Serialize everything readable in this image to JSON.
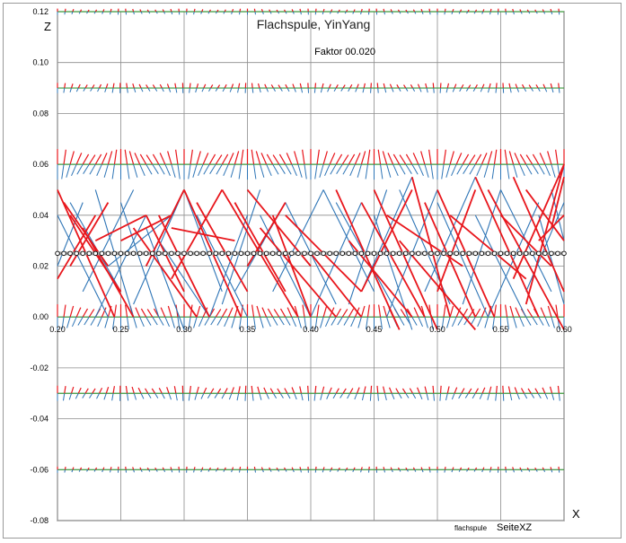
{
  "chart_data": {
    "type": "line",
    "title": "Flachspule, YinYang",
    "subtitle": "Faktor 00.020",
    "xlabel": "X",
    "ylabel": "Z",
    "footer_small": "flachspule",
    "footer_large": "SeiteXZ",
    "xlim": [
      0.2,
      0.6
    ],
    "ylim": [
      -0.08,
      0.12
    ],
    "x_ticks": [
      "0.20",
      "0.25",
      "0.30",
      "0.35",
      "0.40",
      "0.45",
      "0.50",
      "0.55",
      "0.60"
    ],
    "y_ticks": [
      "0.12",
      "0.10",
      "0.08",
      "0.06",
      "0.04",
      "0.02",
      "0.00",
      "-0.02",
      "-0.04",
      "-0.06",
      "-0.08"
    ],
    "grid": true,
    "colors": {
      "red": "#e8161c",
      "blue": "#2e75b6",
      "green": "#3c9a3c",
      "grey": "#a6a6a6",
      "black": "#000000",
      "grid": "#8c8c8c"
    },
    "planes_z": [
      0.12,
      0.09,
      0.06,
      0.025,
      0.0,
      -0.03,
      -0.06
    ],
    "series": [
      {
        "name": "",
        "color": "grey",
        "x": [
          0.2,
          0.6
        ],
        "y": [
          0.025,
          0.025
        ]
      },
      {
        "name": "",
        "color": "black",
        "marker": "circle",
        "x": [
          0.2,
          0.205,
          0.21,
          0.215,
          0.22,
          0.225,
          0.23,
          0.235,
          0.24,
          0.245,
          0.25,
          0.255,
          0.26,
          0.265,
          0.27,
          0.275,
          0.28,
          0.285,
          0.29,
          0.295,
          0.3,
          0.305,
          0.31,
          0.315,
          0.32,
          0.325,
          0.33,
          0.335,
          0.34,
          0.345,
          0.35,
          0.355,
          0.36,
          0.365,
          0.37,
          0.375,
          0.38,
          0.385,
          0.39,
          0.395,
          0.4,
          0.405,
          0.41,
          0.415,
          0.42,
          0.425,
          0.43,
          0.435,
          0.44,
          0.445,
          0.45,
          0.455,
          0.46,
          0.465,
          0.47,
          0.475,
          0.48,
          0.485,
          0.49,
          0.495,
          0.5,
          0.505,
          0.51,
          0.515,
          0.52,
          0.525,
          0.53,
          0.535,
          0.54,
          0.545,
          0.55,
          0.555,
          0.56,
          0.565,
          0.57,
          0.575,
          0.58,
          0.585,
          0.59,
          0.595,
          0.6
        ],
        "y": [
          0.025,
          0.025,
          0.025,
          0.025,
          0.025,
          0.025,
          0.025,
          0.025,
          0.025,
          0.025,
          0.025,
          0.025,
          0.025,
          0.025,
          0.025,
          0.025,
          0.025,
          0.025,
          0.025,
          0.025,
          0.025,
          0.025,
          0.025,
          0.025,
          0.025,
          0.025,
          0.025,
          0.025,
          0.025,
          0.025,
          0.025,
          0.025,
          0.025,
          0.025,
          0.025,
          0.025,
          0.025,
          0.025,
          0.025,
          0.025,
          0.025,
          0.025,
          0.025,
          0.025,
          0.025,
          0.025,
          0.025,
          0.025,
          0.025,
          0.025,
          0.025,
          0.025,
          0.025,
          0.025,
          0.025,
          0.025,
          0.025,
          0.025,
          0.025,
          0.025,
          0.025,
          0.025,
          0.025,
          0.025,
          0.025,
          0.025,
          0.025,
          0.025,
          0.025,
          0.025,
          0.025,
          0.025,
          0.025,
          0.025,
          0.025,
          0.025,
          0.025,
          0.025,
          0.025,
          0.025,
          0.025
        ]
      },
      {
        "name": "",
        "color": "red",
        "segments": [
          [
            [
              0.2,
              0.05
            ],
            [
              0.245,
              0.0
            ]
          ],
          [
            [
              0.205,
              0.045
            ],
            [
              0.24,
              0.02
            ]
          ],
          [
            [
              0.21,
              0.04
            ],
            [
              0.25,
              0.01
            ]
          ],
          [
            [
              0.22,
              0.035
            ],
            [
              0.26,
              0.0
            ]
          ],
          [
            [
              0.23,
              0.03
            ],
            [
              0.27,
              0.04
            ]
          ],
          [
            [
              0.25,
              0.03
            ],
            [
              0.29,
              0.04
            ]
          ],
          [
            [
              0.26,
              0.035
            ],
            [
              0.31,
              0.0
            ]
          ],
          [
            [
              0.27,
              0.04
            ],
            [
              0.3,
              0.01
            ]
          ],
          [
            [
              0.28,
              0.04
            ],
            [
              0.32,
              0.0
            ]
          ],
          [
            [
              0.29,
              0.035
            ],
            [
              0.34,
              0.03
            ]
          ],
          [
            [
              0.3,
              0.05
            ],
            [
              0.345,
              0.0
            ]
          ],
          [
            [
              0.31,
              0.045
            ],
            [
              0.35,
              0.01
            ]
          ],
          [
            [
              0.33,
              0.05
            ],
            [
              0.39,
              0.0
            ]
          ],
          [
            [
              0.34,
              0.045
            ],
            [
              0.38,
              0.01
            ]
          ],
          [
            [
              0.35,
              0.05
            ],
            [
              0.4,
              0.02
            ]
          ],
          [
            [
              0.36,
              0.035
            ],
            [
              0.42,
              0.0
            ]
          ],
          [
            [
              0.37,
              0.04
            ],
            [
              0.4,
              0.0
            ]
          ],
          [
            [
              0.38,
              0.04
            ],
            [
              0.44,
              0.01
            ]
          ],
          [
            [
              0.4,
              0.025
            ],
            [
              0.44,
              0.0
            ]
          ],
          [
            [
              0.42,
              0.05
            ],
            [
              0.47,
              -0.005
            ]
          ],
          [
            [
              0.43,
              0.03
            ],
            [
              0.48,
              0.0
            ]
          ],
          [
            [
              0.44,
              0.045
            ],
            [
              0.49,
              0.0
            ]
          ],
          [
            [
              0.45,
              0.05
            ],
            [
              0.5,
              -0.005
            ]
          ],
          [
            [
              0.46,
              0.04
            ],
            [
              0.52,
              0.02
            ]
          ],
          [
            [
              0.47,
              0.03
            ],
            [
              0.53,
              -0.005
            ]
          ],
          [
            [
              0.48,
              0.055
            ],
            [
              0.51,
              0.0
            ]
          ],
          [
            [
              0.49,
              0.045
            ],
            [
              0.53,
              0.0
            ]
          ],
          [
            [
              0.5,
              0.05
            ],
            [
              0.545,
              0.0
            ]
          ],
          [
            [
              0.51,
              0.04
            ],
            [
              0.57,
              0.015
            ]
          ],
          [
            [
              0.53,
              0.055
            ],
            [
              0.58,
              0.0
            ]
          ],
          [
            [
              0.54,
              0.05
            ],
            [
              0.6,
              -0.005
            ]
          ],
          [
            [
              0.55,
              0.04
            ],
            [
              0.59,
              0.02
            ]
          ],
          [
            [
              0.56,
              0.055
            ],
            [
              0.6,
              0.01
            ]
          ],
          [
            [
              0.57,
              0.05
            ],
            [
              0.6,
              0.03
            ]
          ],
          [
            [
              0.58,
              0.03
            ],
            [
              0.6,
              0.04
            ]
          ],
          [
            [
              0.59,
              0.035
            ],
            [
              0.6,
              0.055
            ]
          ],
          [
            [
              0.2,
              0.015
            ],
            [
              0.23,
              0.04
            ]
          ],
          [
            [
              0.21,
              0.02
            ],
            [
              0.24,
              0.045
            ]
          ],
          [
            [
              0.27,
              0.02
            ],
            [
              0.3,
              0.05
            ]
          ],
          [
            [
              0.29,
              0.015
            ],
            [
              0.33,
              0.05
            ]
          ],
          [
            [
              0.35,
              0.02
            ],
            [
              0.38,
              0.045
            ]
          ],
          [
            [
              0.44,
              0.01
            ],
            [
              0.48,
              0.05
            ]
          ],
          [
            [
              0.5,
              0.01
            ],
            [
              0.53,
              0.05
            ]
          ],
          [
            [
              0.56,
              0.015
            ],
            [
              0.6,
              0.06
            ]
          ],
          [
            [
              0.57,
              0.005
            ],
            [
              0.6,
              0.06
            ]
          ]
        ]
      },
      {
        "name": "",
        "color": "blue",
        "segments": [
          [
            [
              0.2,
              0.04
            ],
            [
              0.24,
              0.0
            ]
          ],
          [
            [
              0.21,
              0.045
            ],
            [
              0.25,
              0.01
            ]
          ],
          [
            [
              0.23,
              0.05
            ],
            [
              0.26,
              0.0
            ]
          ],
          [
            [
              0.22,
              0.01
            ],
            [
              0.26,
              0.05
            ]
          ],
          [
            [
              0.23,
              0.0
            ],
            [
              0.27,
              0.04
            ]
          ],
          [
            [
              0.24,
              0.02
            ],
            [
              0.29,
              0.04
            ]
          ],
          [
            [
              0.25,
              0.045
            ],
            [
              0.28,
              0.0
            ]
          ],
          [
            [
              0.26,
              0.005
            ],
            [
              0.3,
              0.05
            ]
          ],
          [
            [
              0.27,
              0.035
            ],
            [
              0.3,
              -0.005
            ]
          ],
          [
            [
              0.3,
              0.05
            ],
            [
              0.33,
              0.01
            ]
          ],
          [
            [
              0.31,
              0.04
            ],
            [
              0.35,
              0.0
            ]
          ],
          [
            [
              0.32,
              0.0
            ],
            [
              0.35,
              0.04
            ]
          ],
          [
            [
              0.33,
              0.005
            ],
            [
              0.36,
              0.05
            ]
          ],
          [
            [
              0.34,
              0.01
            ],
            [
              0.38,
              0.045
            ]
          ],
          [
            [
              0.36,
              0.04
            ],
            [
              0.4,
              0.0
            ]
          ],
          [
            [
              0.37,
              0.01
            ],
            [
              0.41,
              0.05
            ]
          ],
          [
            [
              0.38,
              0.045
            ],
            [
              0.42,
              0.005
            ]
          ],
          [
            [
              0.4,
              0.0
            ],
            [
              0.44,
              0.045
            ]
          ],
          [
            [
              0.41,
              0.05
            ],
            [
              0.45,
              0.01
            ]
          ],
          [
            [
              0.42,
              0.045
            ],
            [
              0.47,
              0.0
            ]
          ],
          [
            [
              0.43,
              0.005
            ],
            [
              0.46,
              0.05
            ]
          ],
          [
            [
              0.44,
              0.01
            ],
            [
              0.48,
              0.055
            ]
          ],
          [
            [
              0.45,
              0.04
            ],
            [
              0.48,
              -0.005
            ]
          ],
          [
            [
              0.46,
              0.0
            ],
            [
              0.5,
              0.05
            ]
          ],
          [
            [
              0.47,
              0.05
            ],
            [
              0.51,
              0.005
            ]
          ],
          [
            [
              0.49,
              0.01
            ],
            [
              0.53,
              0.055
            ]
          ],
          [
            [
              0.5,
              0.045
            ],
            [
              0.54,
              0.0
            ]
          ],
          [
            [
              0.52,
              0.005
            ],
            [
              0.55,
              0.05
            ]
          ],
          [
            [
              0.53,
              0.04
            ],
            [
              0.57,
              0.0
            ]
          ],
          [
            [
              0.54,
              0.0
            ],
            [
              0.58,
              0.045
            ]
          ],
          [
            [
              0.55,
              0.05
            ],
            [
              0.59,
              0.01
            ]
          ],
          [
            [
              0.57,
              0.01
            ],
            [
              0.6,
              0.045
            ]
          ],
          [
            [
              0.58,
              0.04
            ],
            [
              0.6,
              0.005
            ]
          ],
          [
            [
              0.59,
              0.05
            ],
            [
              0.6,
              0.03
            ]
          ],
          [
            [
              0.2,
              0.02
            ],
            [
              0.22,
              0.045
            ]
          ],
          [
            [
              0.28,
              0.03
            ],
            [
              0.32,
              0.0
            ]
          ]
        ]
      }
    ]
  }
}
